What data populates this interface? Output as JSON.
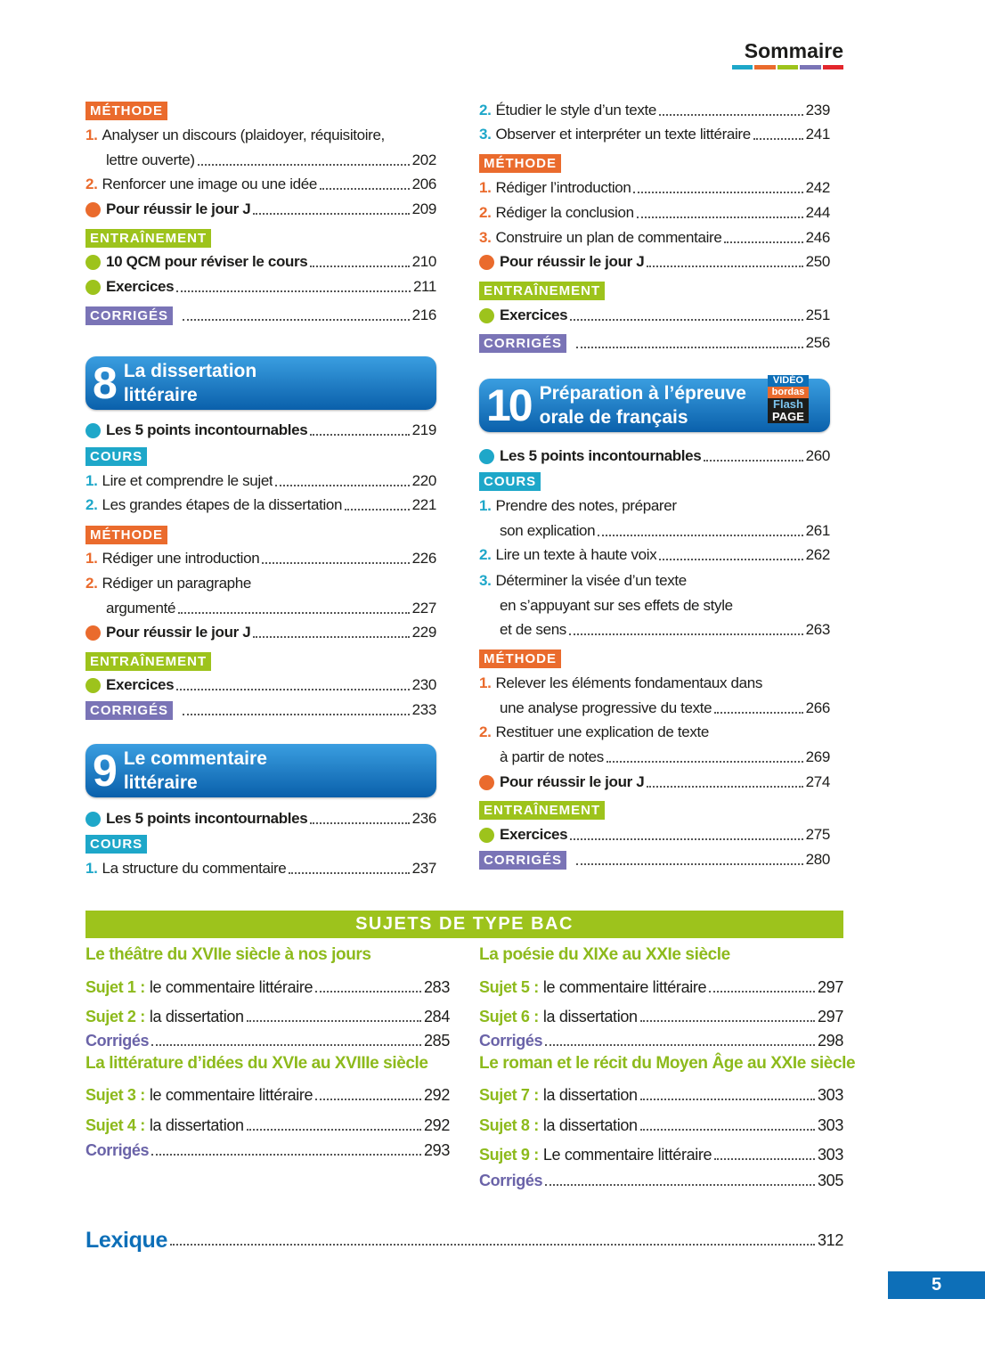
{
  "header": {
    "title": "Sommaire"
  },
  "left_column": [
    {
      "kind": "badge",
      "text": "MÉTHODE",
      "color": "orange"
    },
    {
      "kind": "item",
      "num": "1.",
      "lines": [
        "Analyser un discours  (plaidoyer, réquisitoire,",
        "lettre ouverte)"
      ],
      "page": 202
    },
    {
      "kind": "item",
      "num": "2.",
      "lines": [
        "Renforcer une image ou une idée"
      ],
      "page": 206
    },
    {
      "kind": "bullet",
      "color": "orange",
      "text": "Pour réussir le jour J",
      "page": 209
    },
    {
      "kind": "badge",
      "text": "ENTRAÎNEMENT",
      "color": "green"
    },
    {
      "kind": "bullet",
      "color": "green",
      "text": "10 QCM pour réviser le cours",
      "page": 210
    },
    {
      "kind": "bullet",
      "color": "green",
      "text": "Exercices",
      "page": 211
    },
    {
      "kind": "badge",
      "text": "CORRIGÉS",
      "color": "purple",
      "page": 216
    },
    {
      "kind": "chapter",
      "num": "8",
      "lines": [
        "La dissertation",
        "littéraire"
      ]
    },
    {
      "kind": "bullet",
      "color": "cyan",
      "text": "Les 5 points incontournables",
      "page": 219
    },
    {
      "kind": "badge",
      "text": "COURS",
      "color": "cyan"
    },
    {
      "kind": "item",
      "num": "1.",
      "lines": [
        "Lire et comprendre le sujet"
      ],
      "page": 220
    },
    {
      "kind": "item",
      "num": "2.",
      "lines": [
        "Les grandes étapes de la dissertation"
      ],
      "page": 221
    },
    {
      "kind": "badge",
      "text": "MÉTHODE",
      "color": "orange"
    },
    {
      "kind": "item",
      "num": "1.",
      "lines": [
        "Rédiger une introduction"
      ],
      "page": 226
    },
    {
      "kind": "item",
      "num": "2.",
      "lines": [
        "Rédiger un paragraphe",
        "argumenté"
      ],
      "page": 227
    },
    {
      "kind": "bullet",
      "color": "orange",
      "text": "Pour réussir le jour J",
      "page": 229
    },
    {
      "kind": "badge",
      "text": "ENTRAÎNEMENT",
      "color": "green"
    },
    {
      "kind": "bullet",
      "color": "green",
      "text": "Exercices",
      "page": 230
    },
    {
      "kind": "badge",
      "text": "CORRIGÉS",
      "color": "purple",
      "page": 233
    },
    {
      "kind": "chapter",
      "num": "9",
      "lines": [
        "Le commentaire",
        "littéraire"
      ]
    },
    {
      "kind": "bullet",
      "color": "cyan",
      "text": "Les 5 points incontournables",
      "page": 236
    },
    {
      "kind": "badge",
      "text": "COURS",
      "color": "cyan"
    },
    {
      "kind": "item",
      "num": "1.",
      "lines": [
        "La structure du commentaire"
      ],
      "page": 237
    }
  ],
  "right_column": [
    {
      "kind": "item",
      "num": "2.",
      "lines": [
        "Étudier le style d’un texte"
      ],
      "page": 239
    },
    {
      "kind": "item",
      "num": "3.",
      "lines": [
        "Observer et interpréter un texte littéraire"
      ],
      "page": 241
    },
    {
      "kind": "badge",
      "text": "MÉTHODE",
      "color": "orange"
    },
    {
      "kind": "item",
      "num": "1.",
      "lines": [
        "Rédiger l’introduction"
      ],
      "page": 242
    },
    {
      "kind": "item",
      "num": "2.",
      "lines": [
        "Rédiger la conclusion"
      ],
      "page": 244
    },
    {
      "kind": "item",
      "num": "3.",
      "lines": [
        "Construire un plan de commentaire"
      ],
      "page": 246
    },
    {
      "kind": "bullet",
      "color": "orange",
      "text": "Pour réussir le jour J",
      "page": 250
    },
    {
      "kind": "badge",
      "text": "ENTRAÎNEMENT",
      "color": "green"
    },
    {
      "kind": "bullet",
      "color": "green",
      "text": "Exercices",
      "page": 251
    },
    {
      "kind": "badge",
      "text": "CORRIGÉS",
      "color": "purple",
      "page": 256
    },
    {
      "kind": "chapter",
      "num": "10",
      "lines": [
        "Préparation à l’épreuve",
        "orale de français"
      ],
      "badge_lines": [
        "VIDÉO",
        "bordas",
        "Flash",
        "PAGE"
      ]
    },
    {
      "kind": "bullet",
      "color": "cyan",
      "text": "Les 5 points incontournables",
      "page": 260
    },
    {
      "kind": "badge",
      "text": "COURS",
      "color": "cyan"
    },
    {
      "kind": "item",
      "num": "1.",
      "lines": [
        "Prendre des notes, préparer",
        "son explication"
      ],
      "page": 261
    },
    {
      "kind": "item",
      "num": "2.",
      "lines": [
        "Lire un texte à haute voix"
      ],
      "page": 262
    },
    {
      "kind": "item",
      "num": "3.",
      "lines": [
        "Déterminer la visée d’un texte",
        "en s’appuyant sur ses effets de style",
        "et de sens"
      ],
      "page": 263
    },
    {
      "kind": "badge",
      "text": "MÉTHODE",
      "color": "orange"
    },
    {
      "kind": "item",
      "num": "1.",
      "lines": [
        "Relever les éléments fondamentaux dans",
        "une analyse progressive du texte"
      ],
      "page": 266
    },
    {
      "kind": "item",
      "num": "2.",
      "lines": [
        "Restituer une explication de texte",
        "à partir de notes"
      ],
      "page": 269
    },
    {
      "kind": "bullet",
      "color": "orange",
      "text": "Pour réussir le jour J",
      "page": 274
    },
    {
      "kind": "badge",
      "text": "ENTRAÎNEMENT",
      "color": "green"
    },
    {
      "kind": "bullet",
      "color": "green",
      "text": "Exercices",
      "page": 275
    },
    {
      "kind": "badge",
      "text": "CORRIGÉS",
      "color": "purple",
      "page": 280
    }
  ],
  "sujets": {
    "title": "SUJETS DE TYPE BAC",
    "left": [
      {
        "kind": "heading",
        "text": "Le théâtre du XVIIe siècle à nos jours"
      },
      {
        "kind": "sujet",
        "label": "Sujet 1 :",
        "text": "le commentaire littéraire",
        "page": 283
      },
      {
        "kind": "sujet",
        "label": "Sujet 2 :",
        "text": "la dissertation",
        "page": 284
      },
      {
        "kind": "corriges",
        "text": "Corrigés",
        "page": 285
      },
      {
        "kind": "heading",
        "text": "La littérature d’idées du XVIe au XVIIIe siècle"
      },
      {
        "kind": "sujet",
        "label": "Sujet 3 :",
        "text": "le commentaire littéraire",
        "page": 292
      },
      {
        "kind": "sujet",
        "label": "Sujet 4 :",
        "text": "la dissertation",
        "page": 292
      },
      {
        "kind": "corriges",
        "text": "Corrigés",
        "page": 293
      }
    ],
    "right": [
      {
        "kind": "heading",
        "text": "La poésie du XIXe au XXIe siècle"
      },
      {
        "kind": "sujet",
        "label": "Sujet 5 :",
        "text": "le commentaire littéraire",
        "page": 297
      },
      {
        "kind": "sujet",
        "label": "Sujet 6 :",
        "text": "la dissertation",
        "page": 297
      },
      {
        "kind": "corriges",
        "text": "Corrigés",
        "page": 298
      },
      {
        "kind": "heading",
        "text": "Le roman et le récit du Moyen Âge au XXIe siècle"
      },
      {
        "kind": "sujet",
        "label": "Sujet 7 :",
        "text": "la dissertation",
        "page": 303
      },
      {
        "kind": "sujet",
        "label": "Sujet 8 :",
        "text": "la dissertation",
        "page": 303
      },
      {
        "kind": "sujet",
        "label": "Sujet 9 :",
        "text": "Le commentaire littéraire",
        "page": 303
      },
      {
        "kind": "corriges",
        "text": "Corrigés",
        "page": 305
      }
    ]
  },
  "lexique": {
    "text": "Lexique",
    "page": 312
  },
  "footer": {
    "page_number": 5
  }
}
